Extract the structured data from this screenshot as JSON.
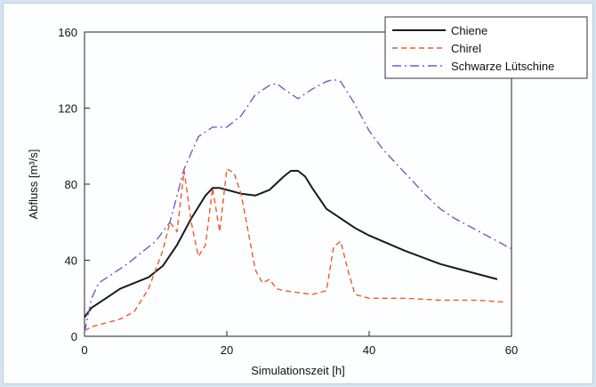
{
  "chart_data": {
    "type": "line",
    "xlabel": "Simulationszeit [h]",
    "ylabel": "Abfluss [m³/s]",
    "xlim": [
      0,
      60
    ],
    "ylim": [
      0,
      160
    ],
    "xticks": [
      0,
      20,
      40,
      60
    ],
    "yticks": [
      0,
      40,
      80,
      120,
      160
    ],
    "grid": false,
    "legend_position": "top-right",
    "series": [
      {
        "name": "Chiene",
        "color": "#1a1a1a",
        "style": "solid",
        "x": [
          0,
          1,
          3,
          5,
          7,
          9,
          11,
          13,
          15,
          17,
          18,
          19,
          20,
          22,
          24,
          26,
          28,
          29,
          30,
          31,
          32,
          34,
          36,
          38,
          40,
          45,
          50,
          55,
          58
        ],
        "y": [
          10,
          15,
          20,
          25,
          28,
          31,
          37,
          48,
          62,
          74,
          78,
          78,
          77,
          75,
          74,
          77,
          84,
          87,
          87,
          84,
          78,
          67,
          62,
          57,
          53,
          45,
          38,
          33,
          30
        ]
      },
      {
        "name": "Chirel",
        "color": "#f05a28",
        "style": "dashed",
        "x": [
          0,
          1,
          3,
          5,
          7,
          9,
          11,
          12,
          13,
          14,
          15,
          16,
          17,
          18,
          19,
          20,
          21,
          22,
          23,
          24,
          25,
          26,
          27,
          28,
          30,
          32,
          34,
          35,
          36,
          37,
          38,
          40,
          45,
          50,
          55,
          59
        ],
        "y": [
          3,
          5,
          7,
          9,
          13,
          25,
          45,
          60,
          55,
          87,
          60,
          42,
          48,
          78,
          55,
          88,
          86,
          75,
          55,
          35,
          28,
          30,
          25,
          24,
          23,
          22,
          24,
          47,
          50,
          35,
          22,
          20,
          20,
          19,
          19,
          18
        ]
      },
      {
        "name": "Schwarze Lütschine",
        "color": "#6a5fc8",
        "style": "dashdot",
        "x": [
          0,
          1,
          2,
          4,
          6,
          8,
          10,
          12,
          14,
          16,
          18,
          20,
          22,
          24,
          26,
          27,
          28,
          30,
          32,
          34,
          35,
          36,
          38,
          40,
          42,
          44,
          46,
          48,
          50,
          52,
          54,
          56,
          58,
          60
        ],
        "y": [
          2,
          20,
          28,
          33,
          38,
          44,
          50,
          60,
          88,
          105,
          110,
          110,
          116,
          127,
          132,
          133,
          130,
          125,
          130,
          134,
          135,
          134,
          122,
          108,
          98,
          90,
          82,
          74,
          67,
          62,
          58,
          54,
          50,
          46
        ]
      }
    ]
  }
}
